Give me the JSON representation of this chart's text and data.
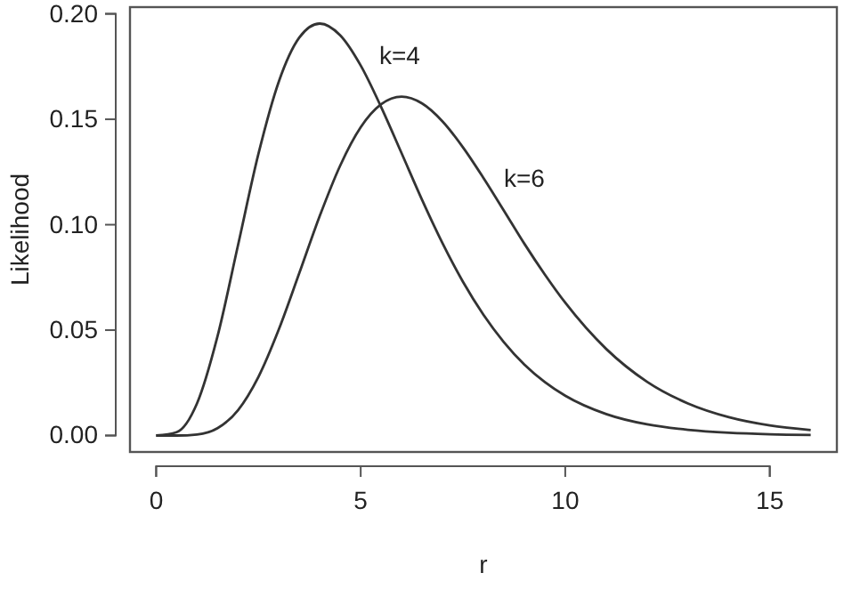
{
  "chart_data": {
    "type": "line",
    "xlabel": "r",
    "ylabel": "Likelihood",
    "x": [
      0,
      0.5,
      1,
      1.5,
      2,
      2.5,
      3,
      3.5,
      4,
      4.5,
      5,
      5.5,
      6,
      6.5,
      7,
      7.5,
      8,
      8.5,
      9,
      9.5,
      10,
      11,
      12,
      13,
      14,
      15,
      16
    ],
    "series": [
      {
        "name": "k=4",
        "color": "#333333",
        "values": [
          0,
          0.0016,
          0.0153,
          0.0471,
          0.0902,
          0.1336,
          0.168,
          0.1888,
          0.1954,
          0.1898,
          0.1755,
          0.1558,
          0.1339,
          0.1118,
          0.0912,
          0.0729,
          0.0573,
          0.0443,
          0.0337,
          0.0254,
          0.0189,
          0.0102,
          0.0053,
          0.0027,
          0.0013,
          0.0006,
          0.0003
        ]
      },
      {
        "name": "k=6",
        "color": "#333333",
        "values": [
          0,
          0,
          0.0005,
          0.0035,
          0.012,
          0.0278,
          0.0504,
          0.0771,
          0.1042,
          0.1281,
          0.1462,
          0.1571,
          0.1607,
          0.1575,
          0.149,
          0.1367,
          0.1222,
          0.1067,
          0.091,
          0.0764,
          0.063,
          0.0411,
          0.0255,
          0.0152,
          0.0087,
          0.0048,
          0.0026
        ]
      }
    ],
    "xlim": [
      -0.64,
      16.64
    ],
    "ylim": [
      -0.0078,
      0.2032
    ],
    "xticks": [
      0,
      5,
      10,
      15
    ],
    "yticks": [
      {
        "value": 0,
        "label": "0.00"
      },
      {
        "value": 0.05,
        "label": "0.05"
      },
      {
        "value": 0.1,
        "label": "0.10"
      },
      {
        "value": 0.15,
        "label": "0.15"
      },
      {
        "value": 0.2,
        "label": "0.20"
      }
    ],
    "grid": false,
    "legend": false,
    "marker": "none",
    "line_style": "solid"
  }
}
